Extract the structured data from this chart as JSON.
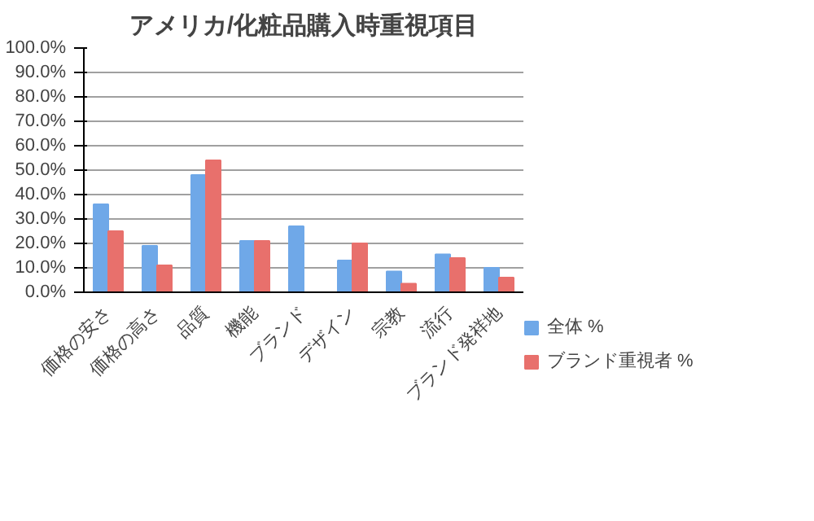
{
  "chart_data": {
    "type": "bar",
    "title": "アメリカ/化粧品購入時重視項目",
    "categories": [
      "価格の安さ",
      "価格の高さ",
      "品質",
      "機能",
      "ブランド",
      "デザイン",
      "宗教",
      "流行",
      "ブランド発祥地"
    ],
    "series": [
      {
        "name": "全体 %",
        "color": "#6fa8e8",
        "values": [
          36,
          19,
          48,
          21,
          27,
          13,
          8.5,
          15.5,
          10
        ]
      },
      {
        "name": "ブランド重視者 %",
        "color": "#e8706c",
        "values": [
          25,
          11,
          54,
          21,
          0,
          20,
          3.5,
          14,
          6
        ]
      }
    ],
    "ylim": [
      0,
      100
    ],
    "yticks": [
      {
        "value": 0,
        "label": "0.0%"
      },
      {
        "value": 10,
        "label": "10.0%"
      },
      {
        "value": 20,
        "label": "20.0%"
      },
      {
        "value": 30,
        "label": "30.0%"
      },
      {
        "value": 40,
        "label": "40.0%"
      },
      {
        "value": 50,
        "label": "50.0%"
      },
      {
        "value": 60,
        "label": "60.0%"
      },
      {
        "value": 70,
        "label": "70.0%"
      },
      {
        "value": 80,
        "label": "80.0%"
      },
      {
        "value": 90,
        "label": "90.0%"
      },
      {
        "value": 100,
        "label": "100.0%"
      }
    ],
    "grid": "y",
    "legend": "right"
  }
}
